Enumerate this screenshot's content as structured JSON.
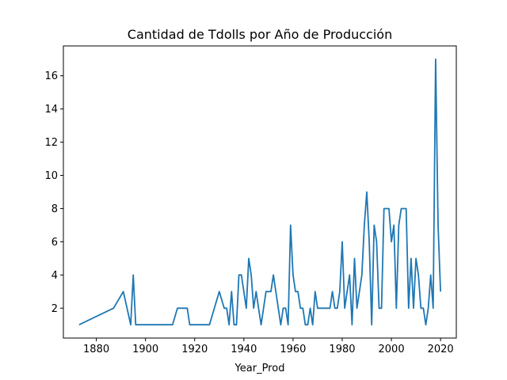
{
  "chart_data": {
    "type": "line",
    "title": "Cantidad de Tdolls por Año de Producción",
    "xlabel": "Year_Prod",
    "ylabel": "",
    "xlim": [
      1866.6,
      2026.4
    ],
    "ylim": [
      0.2,
      17.8
    ],
    "xticks": [
      1880,
      1900,
      1920,
      1940,
      1960,
      1980,
      2000,
      2020
    ],
    "yticks": [
      2,
      4,
      6,
      8,
      10,
      12,
      14,
      16
    ],
    "grid": false,
    "color": "#1f77b4",
    "series": [
      {
        "x": [
          1873,
          1887,
          1891,
          1894,
          1895,
          1896,
          1901,
          1911,
          1913,
          1917,
          1918,
          1926,
          1930,
          1932,
          1933,
          1934,
          1935,
          1936,
          1937,
          1938,
          1939,
          1940,
          1941,
          1942,
          1943,
          1944,
          1945,
          1946,
          1947,
          1948,
          1949,
          1950,
          1951,
          1952,
          1953,
          1954,
          1955,
          1956,
          1957,
          1958,
          1959,
          1960,
          1961,
          1962,
          1963,
          1964,
          1965,
          1966,
          1967,
          1968,
          1969,
          1970,
          1971,
          1972,
          1973,
          1974,
          1975,
          1976,
          1977,
          1978,
          1979,
          1980,
          1981,
          1982,
          1983,
          1984,
          1985,
          1986,
          1987,
          1988,
          1989,
          1990,
          1991,
          1992,
          1993,
          1994,
          1995,
          1996,
          1997,
          1998,
          1999,
          2000,
          2001,
          2002,
          2003,
          2004,
          2005,
          2006,
          2007,
          2008,
          2009,
          2010,
          2011,
          2012,
          2013,
          2014,
          2015,
          2016,
          2017,
          2018,
          2019,
          2020
        ],
        "values": [
          1,
          2,
          3,
          1,
          4,
          1,
          1,
          1,
          2,
          2,
          1,
          1,
          3,
          2,
          2,
          1,
          3,
          1,
          1,
          4,
          4,
          3,
          2,
          5,
          4,
          2,
          3,
          2,
          1,
          2,
          3,
          3,
          3,
          4,
          3,
          2,
          1,
          2,
          2,
          1,
          7,
          4,
          3,
          3,
          2,
          2,
          1,
          1,
          2,
          1,
          3,
          2,
          2,
          2,
          2,
          2,
          2,
          3,
          2,
          2,
          3,
          6,
          2,
          3,
          4,
          1,
          5,
          2,
          3,
          4,
          7,
          9,
          6,
          1,
          7,
          6,
          2,
          2,
          8,
          8,
          8,
          6,
          7,
          2,
          7,
          8,
          8,
          8,
          2,
          5,
          2,
          5,
          4,
          2,
          2,
          1,
          2,
          4,
          2,
          17,
          7,
          3
        ]
      }
    ]
  }
}
